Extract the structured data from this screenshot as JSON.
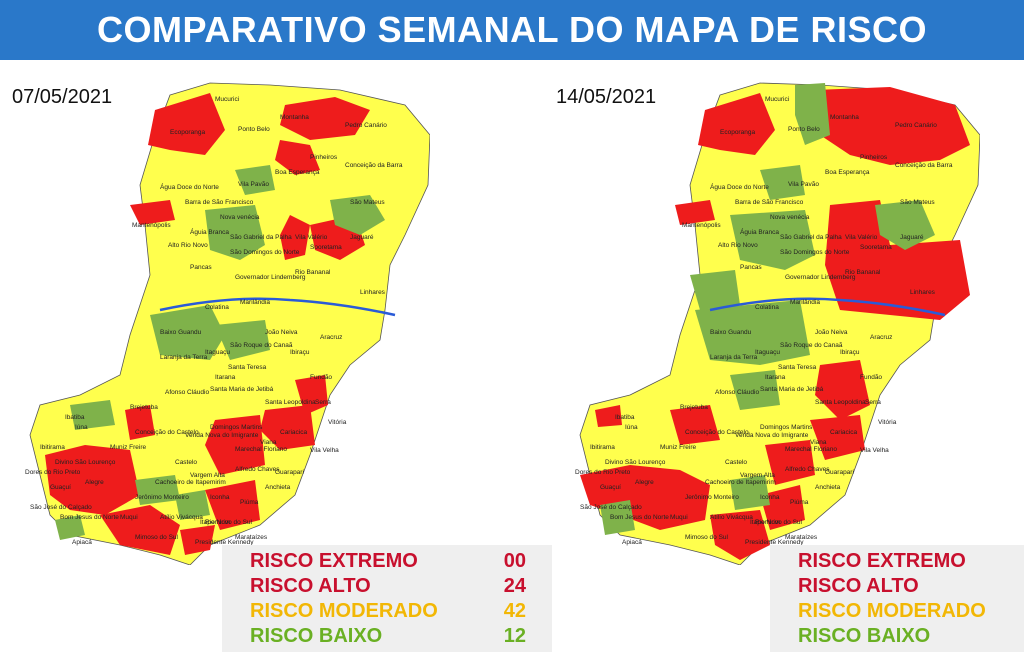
{
  "title": "COMPARATIVO SEMANAL DO MAPA DE RISCO",
  "colors": {
    "banner": "#2a78c9",
    "extremo": "#c8102e",
    "alto": "#c8102e",
    "moderado": "#f2b705",
    "baixo": "#6ab023",
    "map_red": "#ee1c1c",
    "map_yellow": "#ffff4d",
    "map_green": "#7fb24a",
    "river": "#2a5bd7"
  },
  "maps": [
    {
      "date": "07/05/2021",
      "legend": [
        {
          "label": "RISCO EXTREMO",
          "value": "00",
          "color": "#c8102e"
        },
        {
          "label": "RISCO ALTO",
          "value": "24",
          "color": "#c8102e"
        },
        {
          "label": "RISCO MODERADO",
          "value": "42",
          "color": "#f2b705"
        },
        {
          "label": "RISCO BAIXO",
          "value": "12",
          "color": "#6ab023"
        }
      ],
      "municipalities": [
        "Mucurici",
        "Montanha",
        "Pedro Canário",
        "Ecoporanga",
        "Ponto Belo",
        "Pinheiros",
        "Boa Esperança",
        "Conceição da Barra",
        "Água Doce do Norte",
        "Vila Pavão",
        "Barra de São Francisco",
        "São Mateus",
        "Nova venécia",
        "Mantenópolis",
        "Águia Branca",
        "São Gabriel da Palha",
        "Vila Valério",
        "Jaguaré",
        "Alto Rio Novo",
        "São Domingos do Norte",
        "Sooretama",
        "Pancas",
        "Governador Lindemberg",
        "Rio Bananal",
        "Linhares",
        "Marilândia",
        "Colatina",
        "Baixo Guandu",
        "João Neiva",
        "Aracruz",
        "Itaguaçu",
        "São Roque do Canaã",
        "Ibiraçu",
        "Laranja da Terra",
        "Santa Teresa",
        "Fundão",
        "Itarana",
        "Afonso Cláudio",
        "Santa Maria de Jetibá",
        "Serra",
        "Brejetuba",
        "Santa Leopoldina",
        "Vitória",
        "Ibatiba",
        "Domingos Martins",
        "Cariacica",
        "Iúna",
        "Conceição do Castelo",
        "Venda Nova do Imigrante",
        "Viana",
        "Vila Velha",
        "Ibitirama",
        "Muniz Freire",
        "Marechal Floriano",
        "Divino São Lourenço",
        "Castelo",
        "Alfredo Chaves",
        "Guarapari",
        "Dores do Rio Preto",
        "Vargem Alta",
        "Alegre",
        "Cachoeiro de Itapemirim",
        "Anchieta",
        "Guaçuí",
        "Jerônimo Monteiro",
        "Iconha",
        "Piúma",
        "Muqui",
        "Atílio Vivácqua",
        "Rio Novo do Sul",
        "São José do Calçado",
        "Bom Jesus do Norte",
        "Apiacá",
        "Itapemirim",
        "Marataízes",
        "Mimoso do Sul",
        "Presidente Kennedy"
      ]
    },
    {
      "date": "14/05/2021",
      "legend": [
        {
          "label": "RISCO EXTREMO",
          "value": "",
          "color": "#c8102e"
        },
        {
          "label": "RISCO ALTO",
          "value": "",
          "color": "#c8102e"
        },
        {
          "label": "RISCO MODERADO",
          "value": "",
          "color": "#f2b705"
        },
        {
          "label": "RISCO BAIXO",
          "value": "",
          "color": "#6ab023"
        }
      ],
      "municipalities": [
        "Mucurici",
        "Montanha",
        "Pedro Canário",
        "Ecoporanga",
        "Ponto Belo",
        "Pinheiros",
        "Boa Esperança",
        "Conceição da Barra",
        "Água Doce do Norte",
        "Vila Pavão",
        "Barra de São Francisco",
        "São Mateus",
        "Nova venécia",
        "Mantenópolis",
        "Águia Branca",
        "São Gabriel da Palha",
        "Vila Valério",
        "Jaguaré",
        "Alto Rio Novo",
        "São Domingos do Norte",
        "Sooretama",
        "Pancas",
        "Governador Lindemberg",
        "Rio Bananal",
        "Linhares",
        "Marilândia",
        "Colatina",
        "Baixo Guandu",
        "João Neiva",
        "Aracruz",
        "Itaguaçu",
        "São Roque do Canaã",
        "Ibiraçu",
        "Laranja da Terra",
        "Santa Teresa",
        "Fundão",
        "Itarana",
        "Afonso Cláudio",
        "Santa Maria de Jetibá",
        "Serra",
        "Brejetuba",
        "Santa Leopoldina",
        "Vitória",
        "Ibatiba",
        "Domingos Martins",
        "Cariacica",
        "Iúna",
        "Conceição do Castelo",
        "Venda Nova do Imigrante",
        "Viana",
        "Vila Velha",
        "Ibitirama",
        "Muniz Freire",
        "Marechal Floriano",
        "Divino São Lourenço",
        "Castelo",
        "Alfredo Chaves",
        "Guarapari",
        "Dores do Rio Preto",
        "Vargem Alta",
        "Alegre",
        "Cachoeiro de Itapemirim",
        "Anchieta",
        "Guaçuí",
        "Jerônimo Monteiro",
        "Iconha",
        "Piúma",
        "Muqui",
        "Atílio Vivácqua",
        "Rio Novo do Sul",
        "São José do Calçado",
        "Bom Jesus do Norte",
        "Apiacá",
        "Itapemirim",
        "Marataízes",
        "Mimoso do Sul",
        "Presidente Kennedy"
      ]
    }
  ]
}
